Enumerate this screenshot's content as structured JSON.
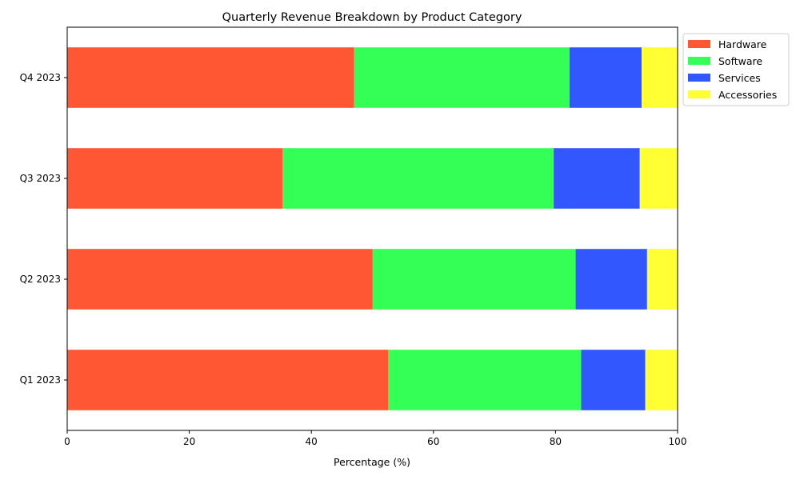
{
  "chart_data": {
    "type": "bar",
    "orientation": "horizontal",
    "stacked": true,
    "title": "Quarterly Revenue Breakdown by Product Category",
    "xlabel": "Percentage (%)",
    "ylabel": "",
    "xlim": [
      0,
      100
    ],
    "x_ticks": [
      "0",
      "20",
      "40",
      "60",
      "80",
      "100"
    ],
    "categories": [
      "Q1 2023",
      "Q2 2023",
      "Q3 2023",
      "Q4 2023"
    ],
    "series": [
      {
        "name": "Hardware",
        "color": "#ff5733",
        "values": [
          52.6,
          50.0,
          35.3,
          47.0
        ]
      },
      {
        "name": "Software",
        "color": "#33ff57",
        "values": [
          31.6,
          33.3,
          44.4,
          35.3
        ]
      },
      {
        "name": "Services",
        "color": "#3357ff",
        "values": [
          10.5,
          11.7,
          14.1,
          11.8
        ]
      },
      {
        "name": "Accessories",
        "color": "#ffff33",
        "values": [
          5.3,
          5.0,
          6.2,
          5.9
        ]
      }
    ],
    "legend_position": "upper-right-outside",
    "grid": false
  }
}
